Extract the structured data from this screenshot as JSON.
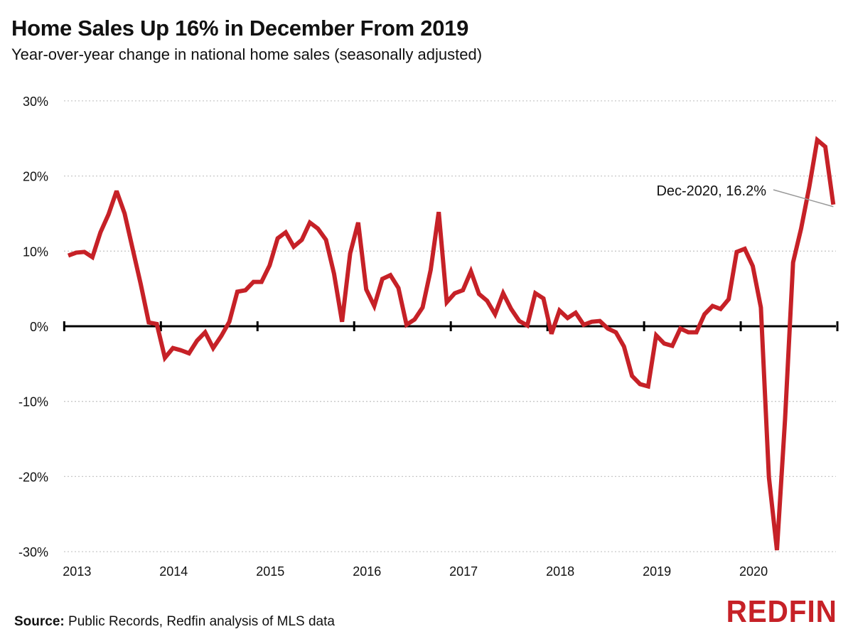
{
  "title": "Home Sales Up 16% in December From 2019",
  "subtitle": "Year-over-year change in national home sales (seasonally adjusted)",
  "source_label": "Source:",
  "source_text": "Public Records, Redfin analysis of MLS data",
  "logo": "REDFIN",
  "chart_data": {
    "type": "line",
    "title": "Home Sales Up 16% in December From 2019",
    "subtitle": "Year-over-year change in national home sales (seasonally adjusted)",
    "xlabel": "",
    "ylabel": "",
    "x_start": "2013-01",
    "x_end": "2020-12",
    "x_frequency": "monthly",
    "x_tick_labels": [
      "2013",
      "2014",
      "2015",
      "2016",
      "2017",
      "2018",
      "2019",
      "2020"
    ],
    "y_tick_labels": [
      "30%",
      "20%",
      "10%",
      "0%",
      "-10%",
      "-20%",
      "-30%"
    ],
    "y_ticks": [
      30,
      20,
      10,
      0,
      -10,
      -20,
      -30
    ],
    "ylim": [
      -30,
      30
    ],
    "grid": "horizontal dotted",
    "line_color": "#c62127",
    "series": [
      {
        "values": [
          9.4,
          9.8,
          9.9,
          9.2,
          12.5,
          14.9,
          18.0,
          15.0,
          10.3,
          5.6,
          0.5,
          0.3,
          -4.2,
          -2.9,
          -3.2,
          -3.6,
          -1.9,
          -0.8,
          -2.9,
          -1.3,
          0.6,
          4.6,
          4.8,
          5.9,
          5.9,
          8.1,
          11.7,
          12.5,
          10.6,
          11.5,
          13.8,
          13.0,
          11.5,
          7.0,
          0.6,
          9.7,
          13.8,
          4.9,
          2.7,
          6.3,
          6.8,
          5.1,
          0.2,
          0.9,
          2.5,
          7.5,
          15.2,
          3.2,
          4.4,
          4.8,
          7.3,
          4.3,
          3.4,
          1.6,
          4.4,
          2.3,
          0.7,
          0.1,
          4.4,
          3.7,
          -1.0,
          2.1,
          1.1,
          1.8,
          0.2,
          0.6,
          0.7,
          -0.3,
          -0.8,
          -2.7,
          -6.6,
          -7.7,
          -8.0,
          -1.2,
          -2.3,
          -2.6,
          -0.3,
          -0.8,
          -0.8,
          1.6,
          2.7,
          2.3,
          3.6,
          9.9,
          10.3,
          8.0,
          2.5,
          -20.1,
          -29.8,
          -12.4,
          8.5,
          13.0,
          18.5,
          24.8,
          23.9,
          16.2
        ]
      }
    ],
    "annotation": {
      "text": "Dec-2020, 16.2%",
      "x": "2020-12",
      "y": 16.2
    }
  }
}
